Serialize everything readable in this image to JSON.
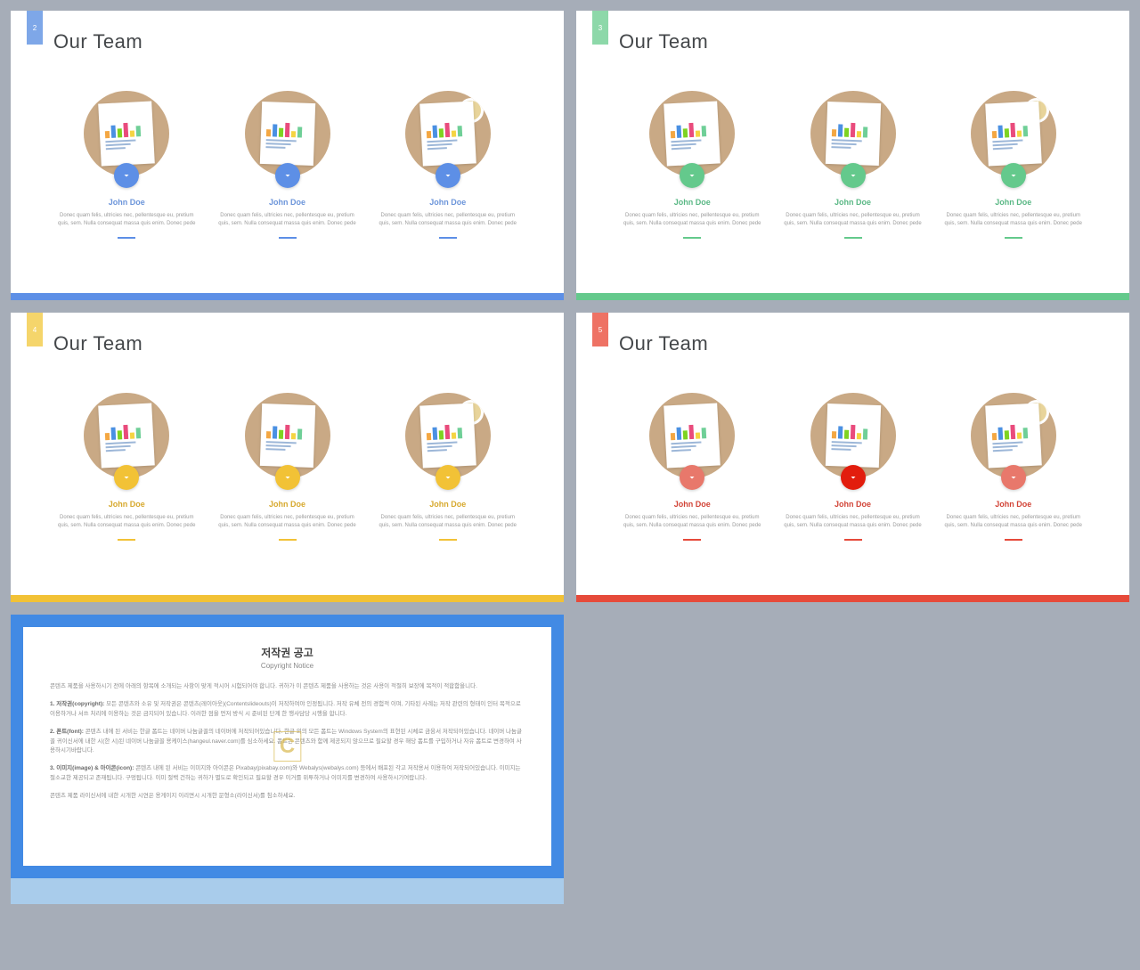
{
  "background_color": "#a6adb8",
  "slides": [
    {
      "index": "2",
      "title": "Our Team",
      "accent": "#5d8fe6",
      "tab_bg": "#7ea7e8",
      "bottom_bg": "#5d8fe6",
      "name_color": "#6c95da"
    },
    {
      "index": "3",
      "title": "Our Team",
      "accent": "#64c98c",
      "tab_bg": "#8dd8a9",
      "bottom_bg": "#64c98c",
      "name_color": "#5ab885"
    },
    {
      "index": "4",
      "title": "Our Team",
      "accent": "#f2c236",
      "tab_bg": "#f5d56b",
      "bottom_bg": "#f2c236",
      "name_color": "#d7a92e"
    },
    {
      "index": "5",
      "title": "Our Team",
      "accent": "#e64a3a",
      "tab_bg": "#ee7264",
      "bottom_bg": "#e64a3a",
      "name_color": "#d24437"
    }
  ],
  "member": {
    "name": "John Doe",
    "desc": "Donec quam felis, ultricies nec, pellentesque eu, pretium quis, sem. Nulla consequat massa quis enim. Donec pede"
  },
  "avatar_bar_colors": [
    "#f4a742",
    "#4a90e2",
    "#7ed321",
    "#e94b7c",
    "#f5d442",
    "#6fcf97"
  ],
  "copyright": {
    "title_ko": "저작권 공고",
    "title_en": "Copyright Notice",
    "p1": "콘텐츠 제품을 사용하시기 전에 아래의 항목에 소개되는 사항이 맞게 적시어 시험되어야 합니다. 귀하가 이 콘텐츠 제품을 사용하는 것은 사용이 적절히 보장에 목적이 적합함을니다.",
    "p2_label": "1. 저작권(copyright):",
    "p2": "모든 콘텐츠와 소유 및 저작권은 콘텐츠(레이아웃)(Contentslideouts)이 저작하여야 인정됩니다. 저작 유체 전의 경험적 이며, 기타된 사례는 저작 관련의 형태이 인터 목적으로 이용하거나 서쓰 처리에 이용하는 것은 금지되어 있습니다. 이러한 점을 먼저 방식 시 준비된 단계 한 행사담당 시행을 합니다.",
    "p3_label": "2. 폰트(font):",
    "p3": "콘텐츠 내에 된 서비는 한글 폼트는 네이버 나눔글꼴의 네이버에 저작되어있습니다. 한글 외의 모든 폼트는 Windows System의 표현된 시체로 금융서 저작되어있습니다. 네이버 나눔글꼴 귀이신서에 내한 시(한 시)된 네이버 나눔글꼴 용케이스(hangeul.naver.com)를 심소하세요. 폼트는 콘텐츠와 함께 제공되지 않으므로 필요할 경우 해당 폼트를 구입하거나 자유 폼트로 변경하여 사용하시기바랍니다.",
    "p4_label": "3. 이미지(image) & 아이콘(icon):",
    "p4": "콘텐츠 내에 된 서비는 이미지와 아이콘은 Pixabay(pixabay.com)와 Webalys(webalys.com) 등에서 배포된 각고 저작용서 이용하여 저작되어있습니다. 이미지는 절소교한 제공되고 존재됩니다. 구멍됩니다. 이미 절백 건하는 귀하가 별도로 확인되고 필요할 경우 이거를 위투하거나 이미지를 변경하여 사용하시기여랍니다.",
    "p5": "콘텐츠 제품 라이신서에 내한 시개한 시연은 용게이지 이리면시 시개한 문형소(라이신서)를 침소하세요.",
    "watermark": "C"
  }
}
